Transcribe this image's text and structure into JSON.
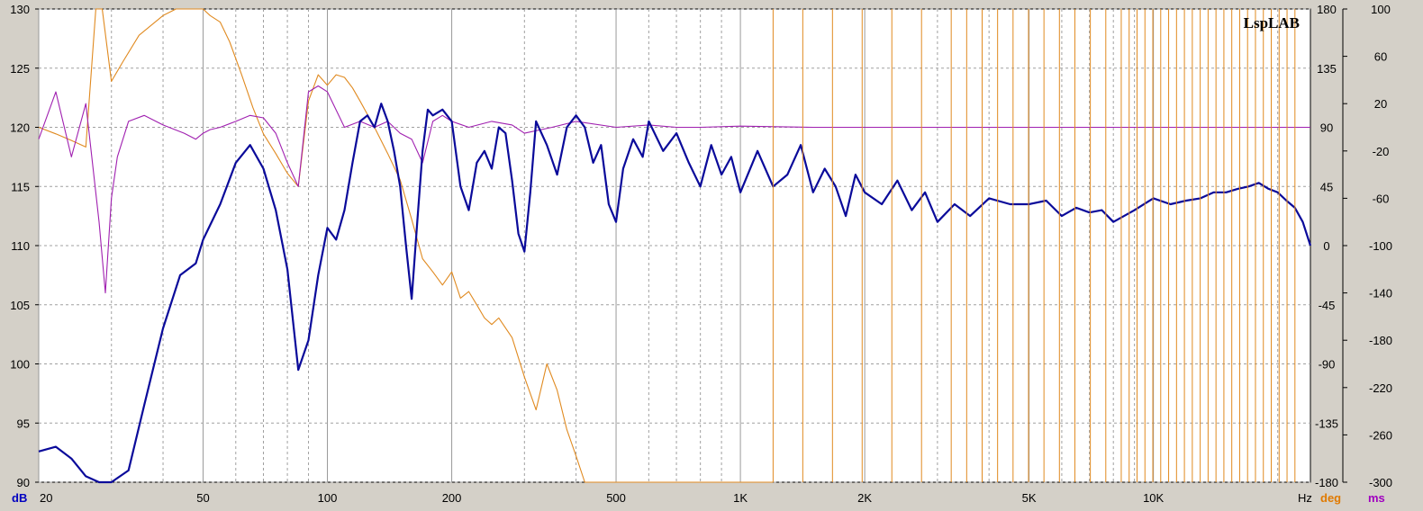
{
  "chart_data": {
    "type": "line",
    "watermark": "LspLAB",
    "x_axis": {
      "scale": "log",
      "range": [
        20,
        24000
      ],
      "unit_label": "Hz",
      "ticks": [
        {
          "value": 20,
          "label": "20"
        },
        {
          "value": 50,
          "label": "50"
        },
        {
          "value": 100,
          "label": "100"
        },
        {
          "value": 200,
          "label": "200"
        },
        {
          "value": 500,
          "label": "500"
        },
        {
          "value": 1000,
          "label": "1K"
        },
        {
          "value": 2000,
          "label": "2K"
        },
        {
          "value": 5000,
          "label": "5K"
        },
        {
          "value": 10000,
          "label": "10K"
        }
      ],
      "minor_gridlines": [
        30,
        40,
        60,
        70,
        80,
        90,
        300,
        400,
        600,
        700,
        800,
        900,
        3000,
        4000,
        6000,
        7000,
        8000,
        9000,
        20000
      ]
    },
    "y_left": {
      "unit_label": "dB",
      "color": "#0000c0",
      "range": [
        90,
        130
      ],
      "ticks": [
        "90",
        "95",
        "100",
        "105",
        "110",
        "115",
        "120",
        "125",
        "130"
      ]
    },
    "y_right_phase": {
      "unit_label": "deg",
      "color": "#e07a00",
      "range": [
        -180,
        180
      ],
      "ticks": [
        "-180",
        "-135",
        "-90",
        "-45",
        "0",
        "45",
        "90",
        "135",
        "180"
      ]
    },
    "y_right_delay": {
      "unit_label": "ms",
      "color": "#a000c0",
      "range": [
        -300,
        100
      ],
      "ticks": [
        "-300",
        "-260",
        "-220",
        "-180",
        "-140",
        "-100",
        "-60",
        "-20",
        "20",
        "60",
        "100"
      ]
    },
    "grid": true,
    "series": [
      {
        "kind": "magnitude",
        "axis": "y_left",
        "color": "#0a0a9a",
        "x": [
          20,
          22,
          24,
          26,
          28,
          30,
          33,
          36,
          40,
          44,
          48,
          50,
          55,
          60,
          65,
          70,
          75,
          80,
          85,
          90,
          95,
          100,
          105,
          110,
          115,
          120,
          125,
          130,
          135,
          140,
          145,
          150,
          155,
          160,
          165,
          170,
          175,
          180,
          190,
          200,
          210,
          220,
          230,
          240,
          250,
          260,
          270,
          280,
          290,
          300,
          310,
          320,
          340,
          360,
          380,
          400,
          420,
          440,
          460,
          480,
          500,
          520,
          550,
          580,
          600,
          650,
          700,
          750,
          800,
          850,
          900,
          950,
          1000,
          1100,
          1200,
          1300,
          1400,
          1500,
          1600,
          1700,
          1800,
          1900,
          2000,
          2200,
          2400,
          2600,
          2800,
          3000,
          3300,
          3600,
          4000,
          4500,
          5000,
          5500,
          6000,
          6500,
          7000,
          7500,
          8000,
          9000,
          10000,
          11000,
          12000,
          13000,
          14000,
          15000,
          16000,
          17000,
          18000,
          19000,
          20000,
          21000,
          22000,
          23000,
          24000
        ],
        "y": [
          92.6,
          93.0,
          92.0,
          90.5,
          89,
          88.5,
          91,
          96.5,
          103,
          107.5,
          108.5,
          110.5,
          113.5,
          117,
          118.5,
          116.5,
          113,
          108,
          99.5,
          102,
          107.5,
          111.5,
          110.5,
          113,
          117,
          120.5,
          121,
          120,
          122,
          120.5,
          118,
          115,
          110,
          105.5,
          112,
          118,
          121.5,
          121,
          121.5,
          120.5,
          115,
          113,
          117,
          118,
          116.5,
          120,
          119.5,
          115.5,
          111,
          109.5,
          114.5,
          120.5,
          118.5,
          116,
          120,
          121,
          120,
          117,
          118.5,
          113.5,
          112,
          116.5,
          119,
          117.5,
          120.5,
          118,
          119.5,
          117,
          115,
          118.5,
          116,
          117.5,
          114.5,
          118,
          115,
          116,
          118.5,
          114.5,
          116.5,
          115,
          112.5,
          116,
          114.5,
          113.5,
          115.5,
          113,
          114.5,
          112,
          113.5,
          112.5,
          114,
          113.5,
          113.5,
          113.8,
          112.5,
          113.2,
          112.8,
          113,
          112,
          113,
          114,
          113.5,
          113.8,
          114,
          114.5,
          114.5,
          114.8,
          115,
          115.3,
          114.8,
          114.5,
          113.8,
          113.2,
          112,
          110
        ]
      },
      {
        "kind": "phase",
        "axis": "y_right_phase",
        "color": "#e08a20",
        "x": [
          20,
          22,
          24,
          26,
          27.5,
          28.5,
          30,
          32,
          35,
          40,
          43,
          44,
          46,
          48,
          50,
          52,
          55,
          58,
          62,
          66,
          70,
          75,
          80,
          85,
          90,
          95,
          100,
          105,
          110,
          115,
          120,
          130,
          140,
          150,
          160,
          170,
          180,
          190,
          200,
          210,
          220,
          230,
          240,
          250,
          260,
          280,
          300,
          320,
          340,
          360,
          380,
          400,
          420,
          450,
          480,
          500,
          530,
          560,
          600,
          650,
          700,
          750,
          800,
          850,
          900,
          950,
          1000,
          1050,
          1100,
          1200
        ],
        "y": [
          90,
          85,
          80,
          75,
          180,
          180,
          125,
          140,
          160,
          175,
          180,
          180,
          180,
          180,
          180,
          175,
          170,
          155,
          130,
          105,
          85,
          70,
          55,
          45,
          110,
          130,
          122,
          130,
          128,
          120,
          110,
          90,
          70,
          50,
          20,
          -10,
          -20,
          -30,
          -20,
          -40,
          -35,
          -45,
          -55,
          -60,
          -55,
          -70,
          -100,
          -125,
          -90,
          -110,
          -140,
          -160,
          -180,
          -180,
          -180,
          -180,
          -180,
          -180,
          -180,
          -180,
          -180,
          -180,
          -180,
          -180,
          -180,
          -180,
          -180,
          -180,
          -180,
          -180
        ]
      },
      {
        "kind": "group_delay",
        "axis": "y_right_delay",
        "color": "#a020b0",
        "x": [
          20,
          22,
          24,
          26,
          28,
          29,
          30,
          31,
          33,
          36,
          40,
          45,
          48,
          50,
          52,
          55,
          60,
          65,
          70,
          75,
          80,
          85,
          90,
          95,
          100,
          110,
          120,
          130,
          140,
          150,
          160,
          170,
          180,
          190,
          200,
          220,
          250,
          280,
          300,
          350,
          400,
          500,
          600,
          700,
          800,
          1000,
          1500,
          2000,
          3000,
          5000,
          10000,
          20000,
          24000
        ],
        "y": [
          -10,
          30,
          -25,
          20,
          -80,
          -140,
          -60,
          -25,
          5,
          10,
          2,
          -5,
          -10,
          -5,
          -2,
          0,
          5,
          10,
          8,
          -5,
          -30,
          -50,
          30,
          35,
          30,
          0,
          5,
          0,
          5,
          -5,
          -10,
          -30,
          5,
          10,
          5,
          0,
          5,
          2,
          -5,
          0,
          5,
          0,
          2,
          0,
          0,
          1,
          0,
          0,
          0,
          0,
          0,
          0,
          0
        ]
      }
    ]
  }
}
